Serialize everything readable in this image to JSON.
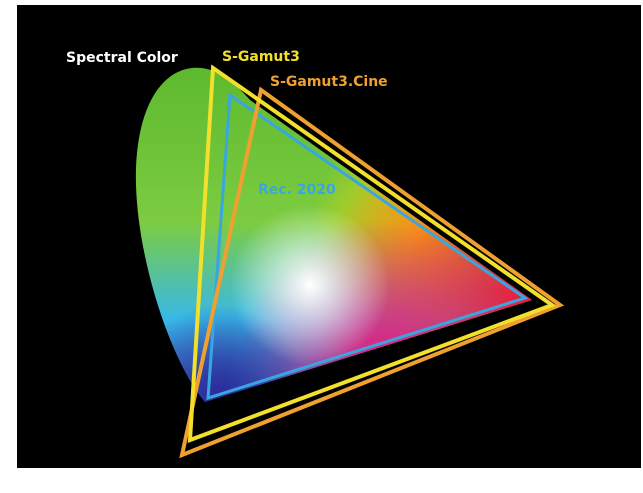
{
  "labels": {
    "spectral": "Spectral Color",
    "sgamut3": "S-Gamut3",
    "sgamut3cine": "S-Gamut3.Cine",
    "rec2020": "Rec. 2020"
  }
}
